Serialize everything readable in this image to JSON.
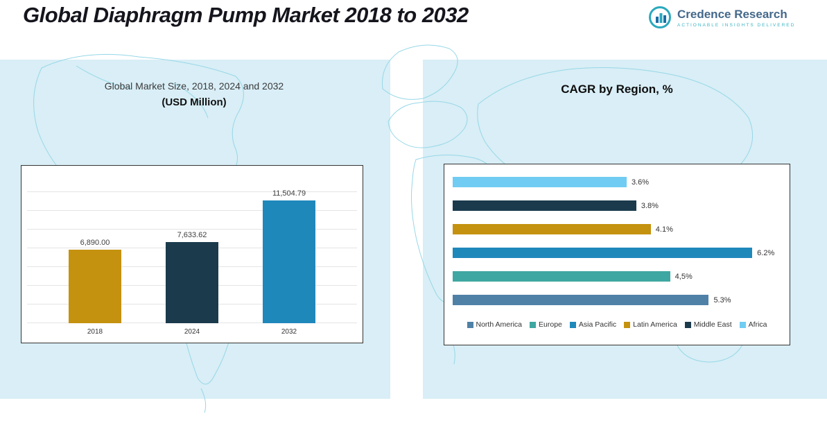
{
  "page": {
    "title": "Global Diaphragm Pump Market 2018 to 2032"
  },
  "logo": {
    "name": "Credence Research",
    "tagline": "ACTIONABLE INSIGHTS DELIVERED"
  },
  "colors": {
    "gold": "#c5920f",
    "navy": "#1b3b4d",
    "blue": "#1f88bb",
    "teal": "#3fa7a1",
    "steel": "#4f81a7",
    "sky": "#70ccf2",
    "panel": "#d9eef6"
  },
  "chart_data": [
    {
      "type": "bar",
      "title": "Global Market Size, 2018, 2024 and 2032",
      "subtitle": "(USD Million)",
      "categories": [
        "2018",
        "2024",
        "2032"
      ],
      "values": [
        6890.0,
        7633.62,
        11504.79
      ],
      "labels": [
        "6,890.00",
        "7,633.62",
        "11,504.79"
      ],
      "bar_colors": [
        "#c5920f",
        "#1b3b4d",
        "#1f88bb"
      ],
      "ylim": [
        0,
        14000
      ],
      "grid": true,
      "legend_position": "none"
    },
    {
      "type": "bar-horizontal",
      "title": "CAGR by Region, %",
      "xlim": [
        0,
        6.8
      ],
      "grid": false,
      "series": [
        {
          "name": "Africa",
          "value": 3.6,
          "label": "3.6%",
          "color": "#70ccf2"
        },
        {
          "name": "Middle East",
          "value": 3.8,
          "label": "3.8%",
          "color": "#1b3b4d"
        },
        {
          "name": "Latin America",
          "value": 4.1,
          "label": "4.1%",
          "color": "#c5920f"
        },
        {
          "name": "Asia Pacific",
          "value": 6.2,
          "label": "6.2%",
          "color": "#1f88bb"
        },
        {
          "name": "Europe",
          "value": 4.5,
          "label": "4,5%",
          "color": "#3fa7a1"
        },
        {
          "name": "North America",
          "value": 5.3,
          "label": "5.3%",
          "color": "#4f81a7"
        }
      ],
      "legend_position": "bottom",
      "legend": [
        {
          "label": "North America",
          "color": "#4f81a7"
        },
        {
          "label": "Europe",
          "color": "#3fa7a1"
        },
        {
          "label": "Asia Pacific",
          "color": "#1f88bb"
        },
        {
          "label": "Latin America",
          "color": "#c5920f"
        },
        {
          "label": "Middle East",
          "color": "#1b3b4d"
        },
        {
          "label": "Africa",
          "color": "#70ccf2"
        }
      ]
    }
  ]
}
